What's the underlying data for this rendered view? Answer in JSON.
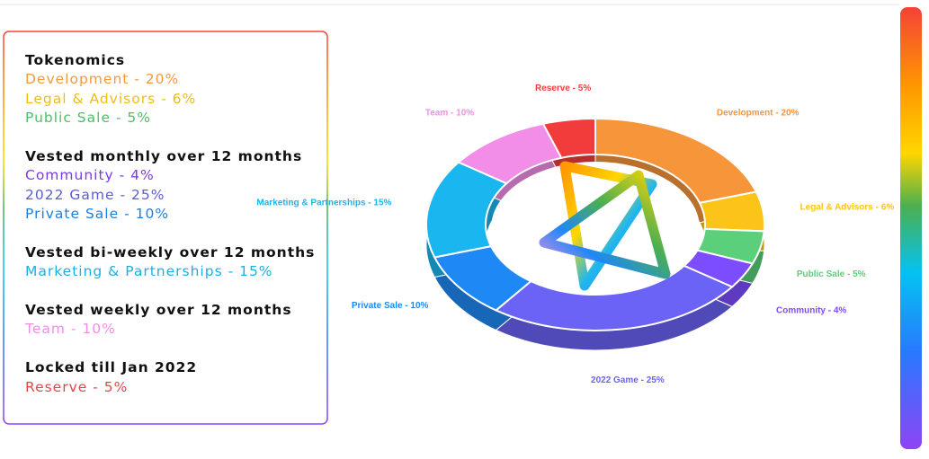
{
  "panel": {
    "groups": [
      {
        "heading": "Tokenomics",
        "items": [
          "Development - 20%",
          "Legal & Advisors - 6%",
          "Public Sale - 5%"
        ]
      },
      {
        "heading": "Vested monthly over 12 months",
        "items": [
          "Community - 4%",
          "2022 Game - 25%",
          "Private Sale - 10%"
        ]
      },
      {
        "heading": "Vested bi-weekly over 12 months",
        "items": [
          "Marketing & Partnerships - 15%"
        ]
      },
      {
        "heading": "Vested weekly over 12 months",
        "items": [
          "Team - 10%"
        ]
      },
      {
        "heading": "Locked till Jan 2022",
        "items": [
          "Reserve - 5%"
        ]
      }
    ]
  },
  "chart_data": {
    "type": "pie",
    "donut": true,
    "values": [
      20,
      6,
      5,
      4,
      25,
      10,
      15,
      10,
      5
    ],
    "value_labels": [
      "Development - 20%",
      "Legal & Advisors - 6%",
      "Public Sale - 5%",
      "Community - 4%",
      "2022 Game - 25%",
      "Private Sale - 10%",
      "Marketing & Partnerships - 15%",
      "Team - 10%",
      "Reserve - 5%"
    ],
    "colors": [
      "#f7953a",
      "#fcc419",
      "#5ccf7a",
      "#7c4dff",
      "#6b63f5",
      "#1e88f5",
      "#19b6f0",
      "#f28ee8",
      "#f23c3c"
    ]
  }
}
